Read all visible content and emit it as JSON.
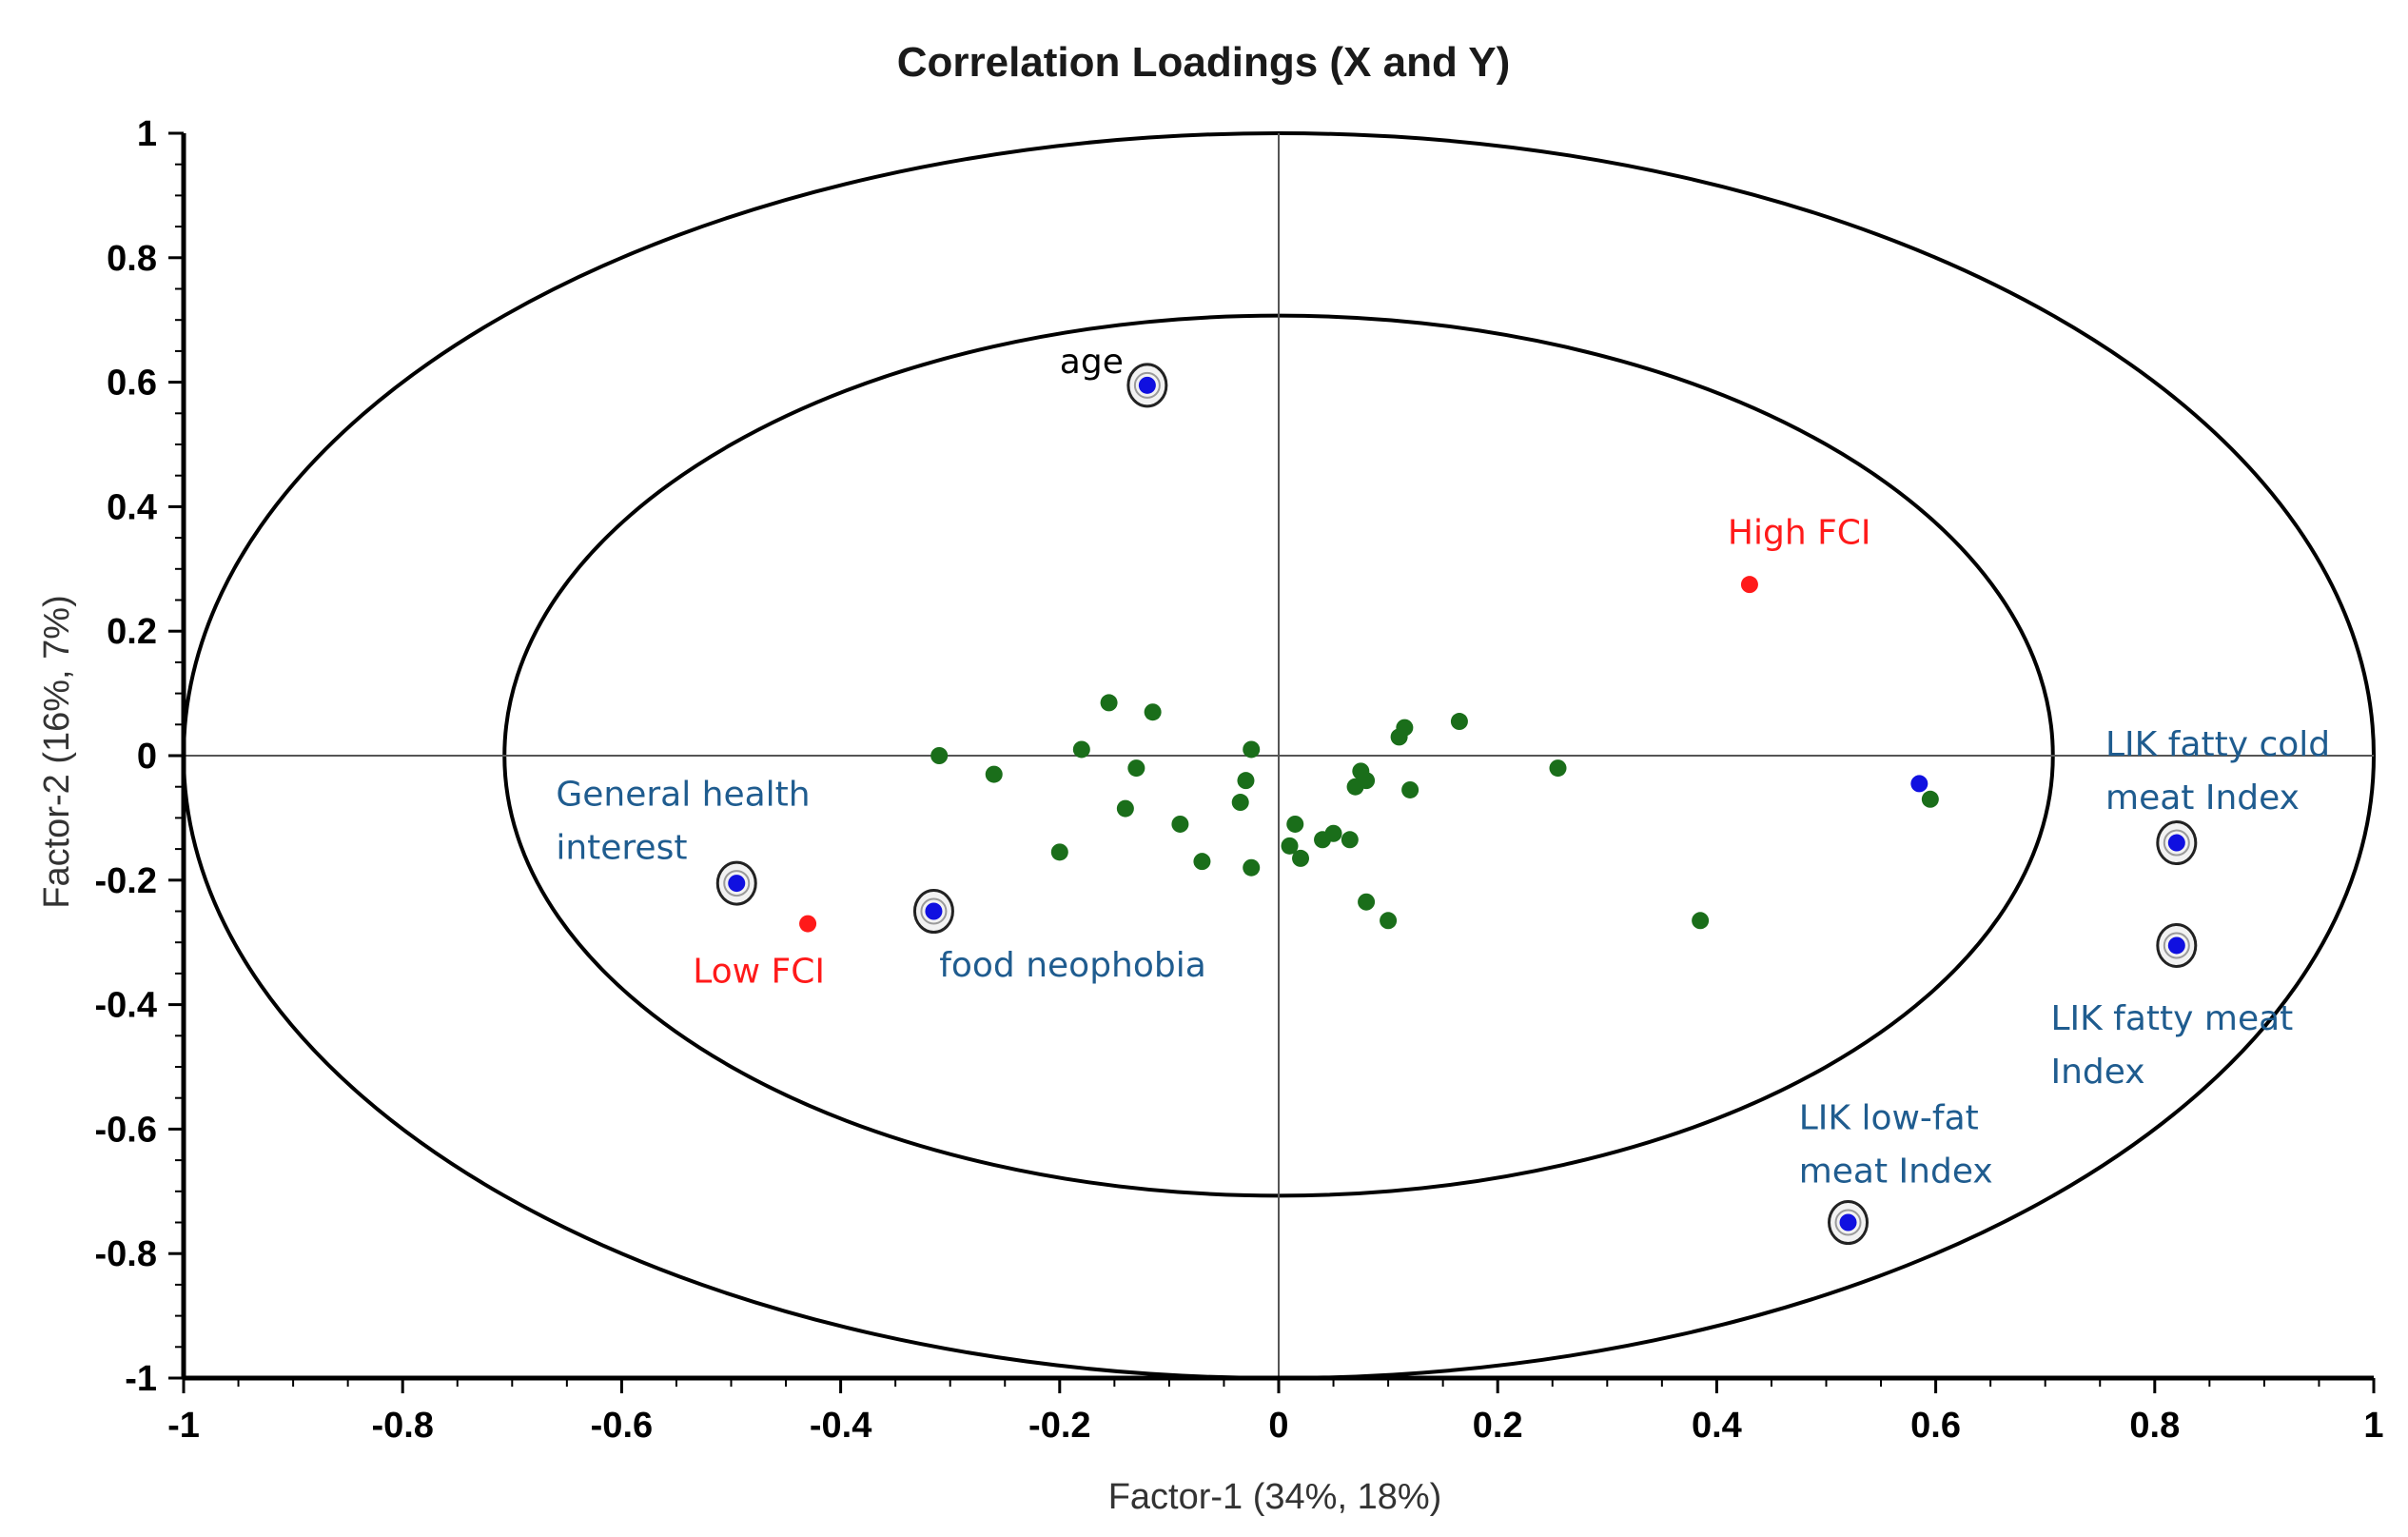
{
  "chart_data": {
    "type": "scatter",
    "title": "Correlation Loadings (X and Y)",
    "xlabel": "Factor-1 (34%, 18%)",
    "ylabel": "Factor-2 (16%, 7%)",
    "xlim": [
      -1,
      1
    ],
    "ylim": [
      -1,
      1
    ],
    "x_ticks": [
      "-1",
      "-0.8",
      "-0.6",
      "-0.4",
      "-0.2",
      "0",
      "0.2",
      "0.4",
      "0.6",
      "0.8",
      "1"
    ],
    "y_ticks": [
      "1",
      "0.8",
      "0.6",
      "0.4",
      "0.2",
      "0",
      "-0.2",
      "-0.4",
      "-0.6",
      "-0.8",
      "-1"
    ],
    "ellipses": [
      {
        "radius": 1.0
      },
      {
        "radius": 0.707
      }
    ],
    "grid": false,
    "colors": {
      "x_variables": "#1a6e1a",
      "y_variables": "#1010e0",
      "fci": "#ff1a1a",
      "label_blue": "#1f5c8f",
      "label_red": "#ff1a1a",
      "label_black": "#000000"
    },
    "green_points": [
      {
        "x": -0.31,
        "y": 0.0
      },
      {
        "x": -0.26,
        "y": -0.03
      },
      {
        "x": -0.2,
        "y": -0.155
      },
      {
        "x": -0.18,
        "y": 0.01
      },
      {
        "x": -0.155,
        "y": 0.085
      },
      {
        "x": -0.14,
        "y": -0.085
      },
      {
        "x": -0.13,
        "y": -0.02
      },
      {
        "x": -0.115,
        "y": 0.07
      },
      {
        "x": -0.09,
        "y": -0.11
      },
      {
        "x": -0.07,
        "y": -0.17
      },
      {
        "x": -0.035,
        "y": -0.075
      },
      {
        "x": -0.03,
        "y": -0.04
      },
      {
        "x": -0.025,
        "y": 0.01
      },
      {
        "x": -0.025,
        "y": -0.18
      },
      {
        "x": 0.01,
        "y": -0.145
      },
      {
        "x": 0.015,
        "y": -0.11
      },
      {
        "x": 0.02,
        "y": -0.165
      },
      {
        "x": 0.04,
        "y": -0.135
      },
      {
        "x": 0.05,
        "y": -0.125
      },
      {
        "x": 0.065,
        "y": -0.135
      },
      {
        "x": 0.07,
        "y": -0.05
      },
      {
        "x": 0.075,
        "y": -0.025
      },
      {
        "x": 0.08,
        "y": -0.04
      },
      {
        "x": 0.08,
        "y": -0.235
      },
      {
        "x": 0.1,
        "y": -0.265
      },
      {
        "x": 0.11,
        "y": 0.03
      },
      {
        "x": 0.115,
        "y": 0.045
      },
      {
        "x": 0.12,
        "y": -0.055
      },
      {
        "x": 0.165,
        "y": 0.055
      },
      {
        "x": 0.255,
        "y": -0.02
      },
      {
        "x": 0.385,
        "y": -0.265
      },
      {
        "x": 0.595,
        "y": -0.07
      }
    ],
    "blue_points": [
      {
        "x": -0.12,
        "y": 0.595,
        "ring": true
      },
      {
        "x": -0.495,
        "y": -0.205,
        "ring": true
      },
      {
        "x": -0.315,
        "y": -0.25,
        "ring": true
      },
      {
        "x": 0.82,
        "y": -0.14,
        "ring": true
      },
      {
        "x": 0.82,
        "y": -0.305,
        "ring": true
      },
      {
        "x": 0.52,
        "y": -0.75,
        "ring": true
      },
      {
        "x": 0.585,
        "y": -0.045,
        "ring": false
      }
    ],
    "red_points": [
      {
        "x": 0.43,
        "y": 0.275
      },
      {
        "x": -0.43,
        "y": -0.27
      }
    ],
    "annotations": [
      {
        "lines": [
          "age"
        ],
        "x": -0.2,
        "y": 0.615,
        "color": "label_black"
      },
      {
        "lines": [
          "High FCI"
        ],
        "x": 0.41,
        "y": 0.34,
        "color": "label_red"
      },
      {
        "lines": [
          "General health",
          "interest"
        ],
        "x": -0.66,
        "y": -0.08,
        "color": "label_blue"
      },
      {
        "lines": [
          "Low FCI"
        ],
        "x": -0.535,
        "y": -0.365,
        "color": "label_red"
      },
      {
        "lines": [
          "food neophobia"
        ],
        "x": -0.31,
        "y": -0.355,
        "color": "label_blue"
      },
      {
        "lines": [
          "LIK fatty cold",
          "meat Index"
        ],
        "x": 0.755,
        "y": 0.0,
        "color": "label_blue"
      },
      {
        "lines": [
          "LIK fatty meat",
          "Index"
        ],
        "x": 0.705,
        "y": -0.44,
        "color": "label_blue"
      },
      {
        "lines": [
          "LIK low-fat",
          "meat Index"
        ],
        "x": 0.475,
        "y": -0.6,
        "color": "label_blue"
      }
    ]
  }
}
